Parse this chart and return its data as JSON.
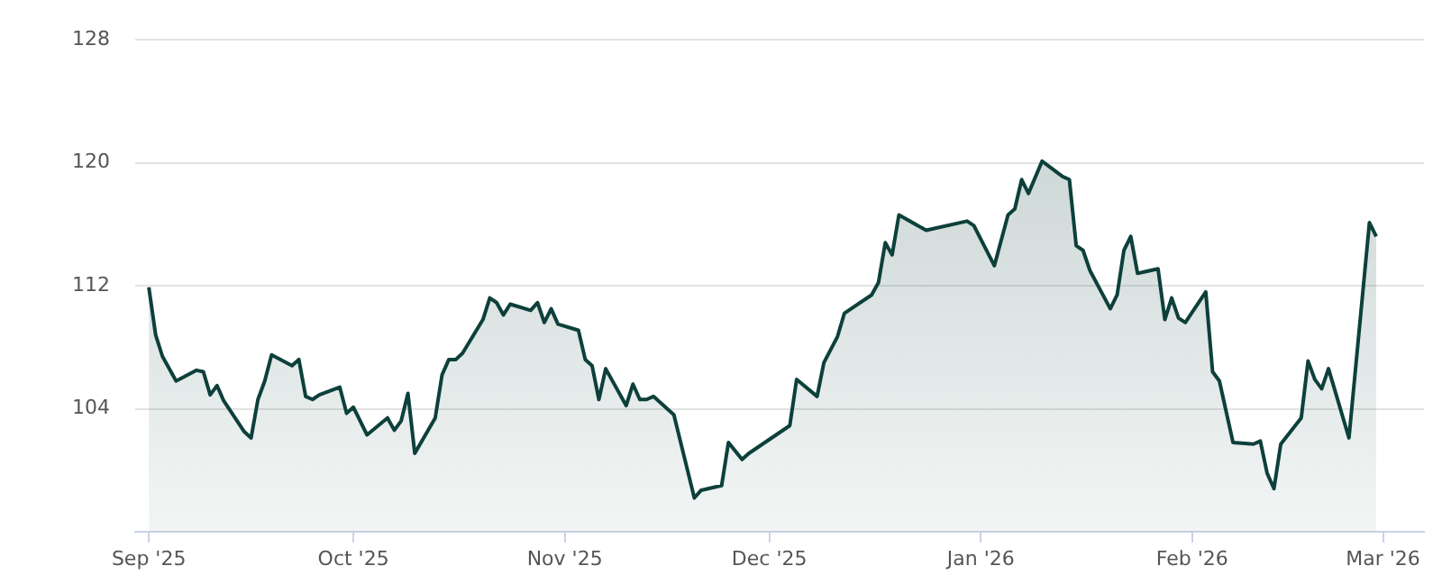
{
  "chart_data": {
    "type": "area",
    "x": [
      "2025-09-01",
      "2025-09-02",
      "2025-09-03",
      "2025-09-05",
      "2025-09-08",
      "2025-09-09",
      "2025-09-10",
      "2025-09-11",
      "2025-09-12",
      "2025-09-15",
      "2025-09-16",
      "2025-09-17",
      "2025-09-18",
      "2025-09-19",
      "2025-09-22",
      "2025-09-23",
      "2025-09-24",
      "2025-09-25",
      "2025-09-26",
      "2025-09-29",
      "2025-09-30",
      "2025-10-01",
      "2025-10-03",
      "2025-10-06",
      "2025-10-07",
      "2025-10-08",
      "2025-10-09",
      "2025-10-10",
      "2025-10-13",
      "2025-10-14",
      "2025-10-15",
      "2025-10-16",
      "2025-10-17",
      "2025-10-20",
      "2025-10-21",
      "2025-10-22",
      "2025-10-23",
      "2025-10-24",
      "2025-10-27",
      "2025-10-28",
      "2025-10-29",
      "2025-10-30",
      "2025-10-31",
      "2025-11-03",
      "2025-11-04",
      "2025-11-05",
      "2025-11-06",
      "2025-11-07",
      "2025-11-10",
      "2025-11-11",
      "2025-11-12",
      "2025-11-13",
      "2025-11-14",
      "2025-11-17",
      "2025-11-20",
      "2025-11-21",
      "2025-11-24",
      "2025-11-25",
      "2025-11-27",
      "2025-11-28",
      "2025-12-02",
      "2025-12-04",
      "2025-12-05",
      "2025-12-08",
      "2025-12-09",
      "2025-12-11",
      "2025-12-12",
      "2025-12-16",
      "2025-12-17",
      "2025-12-18",
      "2025-12-19",
      "2025-12-20",
      "2025-12-24",
      "2025-12-30",
      "2025-12-31",
      "2026-01-03",
      "2026-01-05",
      "2026-01-06",
      "2026-01-07",
      "2026-01-08",
      "2026-01-10",
      "2026-01-13",
      "2026-01-14",
      "2026-01-15",
      "2026-01-16",
      "2026-01-17",
      "2026-01-20",
      "2026-01-21",
      "2026-01-22",
      "2026-01-23",
      "2026-01-24",
      "2026-01-27",
      "2026-01-28",
      "2026-01-29",
      "2026-01-30",
      "2026-01-31",
      "2026-02-03",
      "2026-02-04",
      "2026-02-05",
      "2026-02-07",
      "2026-02-10",
      "2026-02-11",
      "2026-02-12",
      "2026-02-13",
      "2026-02-14",
      "2026-02-17",
      "2026-02-18",
      "2026-02-19",
      "2026-02-20",
      "2026-02-21",
      "2026-02-24",
      "2026-02-27",
      "2026-02-28"
    ],
    "series": [
      {
        "color": "#0d403b",
        "values": [
          111.9,
          108.8,
          107.4,
          105.8,
          106.5,
          106.4,
          104.9,
          105.5,
          104.5,
          102.5,
          102.1,
          104.6,
          105.8,
          107.5,
          106.8,
          107.2,
          104.8,
          104.6,
          104.9,
          105.4,
          103.7,
          104.1,
          102.3,
          103.4,
          102.6,
          103.2,
          105.0,
          101.1,
          103.4,
          106.2,
          107.2,
          107.2,
          107.6,
          109.8,
          111.2,
          110.9,
          110.1,
          110.8,
          110.4,
          110.9,
          109.6,
          110.5,
          109.5,
          109.1,
          107.2,
          106.8,
          104.6,
          106.6,
          104.2,
          105.6,
          104.6,
          104.6,
          104.8,
          103.6,
          98.2,
          98.7,
          99.0,
          101.8,
          100.7,
          101.1,
          102.3,
          102.9,
          105.9,
          104.8,
          107.0,
          108.7,
          110.2,
          111.4,
          112.2,
          114.8,
          114.0,
          116.6,
          115.6,
          116.2,
          115.9,
          113.3,
          116.6,
          117.0,
          118.9,
          118.0,
          120.1,
          119.1,
          118.9,
          114.6,
          114.3,
          113.0,
          110.5,
          111.4,
          114.3,
          115.2,
          112.8,
          113.1,
          109.8,
          111.2,
          109.9,
          109.6,
          111.6,
          106.4,
          105.8,
          101.8,
          101.7,
          101.9,
          99.8,
          98.8,
          101.7,
          103.4,
          107.1,
          105.9,
          105.3,
          106.6,
          102.1,
          116.1,
          115.2
        ]
      }
    ],
    "xlim": [
      "2025-08-30",
      "2026-03-07"
    ],
    "xticks": [
      {
        "value": "2025-09-01",
        "label": "Sep '25"
      },
      {
        "value": "2025-10-01",
        "label": "Oct '25"
      },
      {
        "value": "2025-11-01",
        "label": "Nov '25"
      },
      {
        "value": "2025-12-01",
        "label": "Dec '25"
      },
      {
        "value": "2026-01-01",
        "label": "Jan '26"
      },
      {
        "value": "2026-02-01",
        "label": "Feb '26"
      },
      {
        "value": "2026-03-01",
        "label": "Mar '26"
      }
    ],
    "ylim": [
      96,
      128
    ],
    "yticks": [
      104,
      112,
      120,
      128
    ],
    "grid": "y",
    "marker": "none"
  }
}
